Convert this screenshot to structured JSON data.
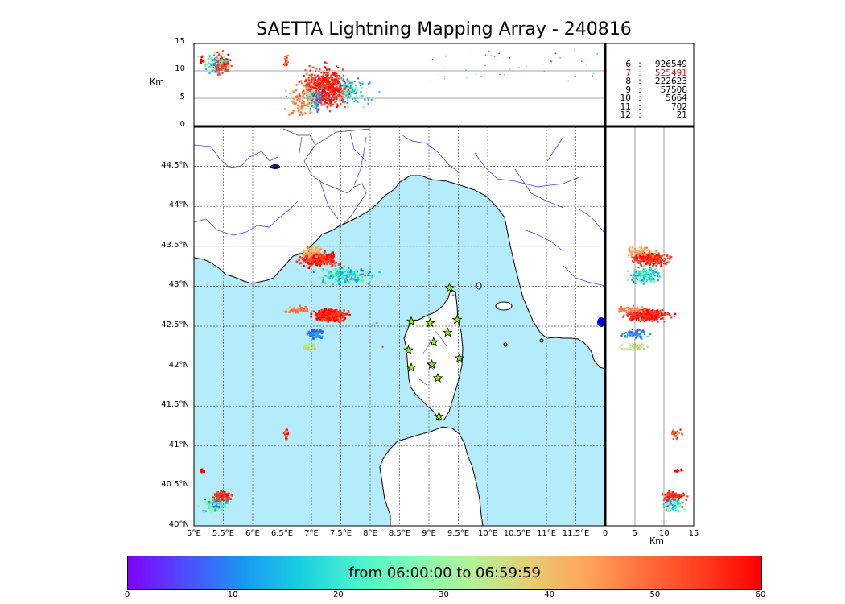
{
  "title": "SAETTA Lightning Mapping Array - 240816",
  "colorbar": {
    "caption": "from 06:00:00 to 06:59:59",
    "ticks": [
      "0",
      "10",
      "20",
      "30",
      "40",
      "50",
      "60"
    ],
    "range": [
      0,
      60
    ]
  },
  "axes": {
    "map_lon_ticks": [
      "5°E",
      "5.5°E",
      "6°E",
      "6.5°E",
      "7°E",
      "7.5°E",
      "8°E",
      "8.5°E",
      "9°E",
      "9.5°E",
      "10°E",
      "10.5°E",
      "11°E",
      "11.5°E"
    ],
    "map_lat_ticks": [
      "40°N",
      "40.5°N",
      "41°N",
      "41.5°N",
      "42°N",
      "42.5°N",
      "43°N",
      "43.5°N",
      "44°N",
      "44.5°N"
    ],
    "altitude_ticks": [
      "0",
      "5",
      "10",
      "15"
    ],
    "altitude_unit": "Km",
    "lon_range": [
      5,
      12
    ],
    "lat_range": [
      40,
      45
    ],
    "alt_range": [
      0,
      15
    ]
  },
  "counts": [
    {
      "level": "6",
      "count": "926549",
      "highlight": false
    },
    {
      "level": "7",
      "count": "525491",
      "highlight": true
    },
    {
      "level": "8",
      "count": "222623",
      "highlight": false
    },
    {
      "level": "9",
      "count": "57508",
      "highlight": false
    },
    {
      "level": "10",
      "count": "5664",
      "highlight": false
    },
    {
      "level": "11",
      "count": "702",
      "highlight": false
    },
    {
      "level": "12",
      "count": "21",
      "highlight": false
    }
  ],
  "stations": [
    [
      9.35,
      42.98
    ],
    [
      8.7,
      42.56
    ],
    [
      9.02,
      42.54
    ],
    [
      9.48,
      42.58
    ],
    [
      9.32,
      42.42
    ],
    [
      9.08,
      42.3
    ],
    [
      8.65,
      42.2
    ],
    [
      9.05,
      42.02
    ],
    [
      8.7,
      41.98
    ],
    [
      9.15,
      41.85
    ],
    [
      9.52,
      42.1
    ],
    [
      9.17,
      41.37
    ]
  ],
  "colors": {
    "sea": "#b4ecfc",
    "land": "#ffffff",
    "coast": "#000000",
    "rivers": "#3333ff",
    "grid": "#555555",
    "station": "#8aff00",
    "highlight": "#ff0000"
  }
}
